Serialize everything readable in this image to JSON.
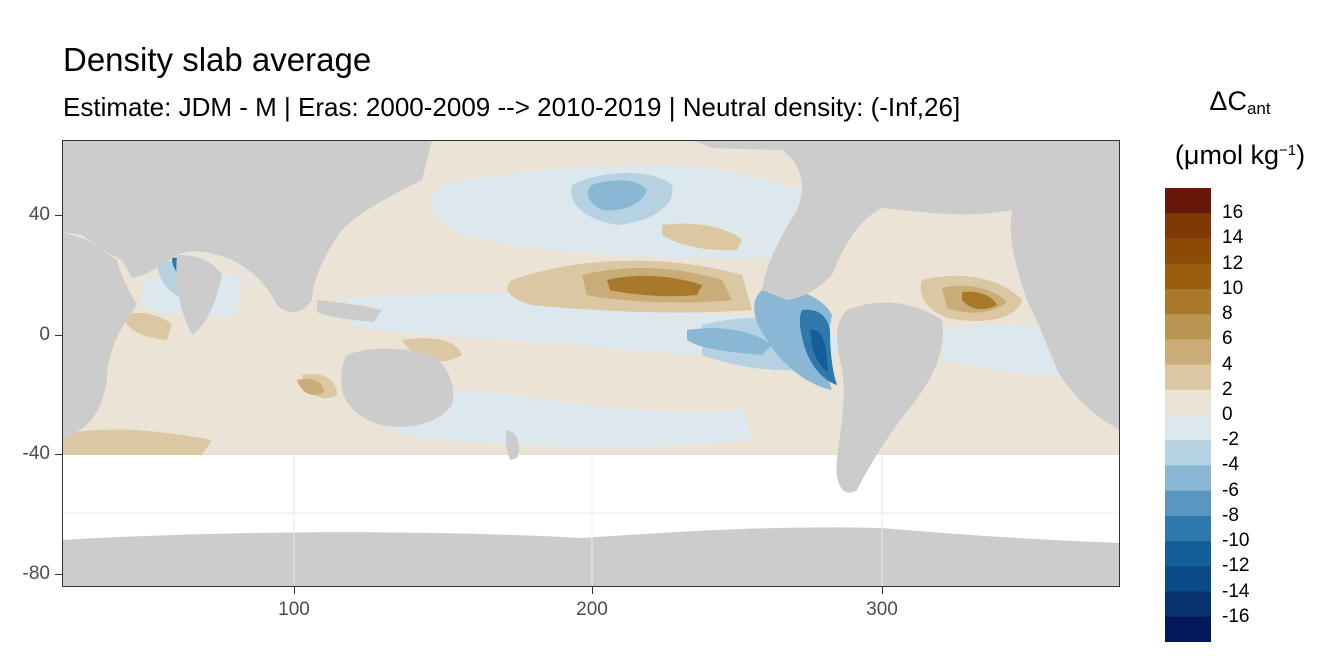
{
  "title": "Density slab average",
  "subtitle": "Estimate: JDM - M | Eras: 2000-2009 --> 2010-2019 | Neutral density: (-Inf,26]",
  "legend": {
    "title_symbol": "ΔC",
    "title_sub": "ant",
    "unit_prefix": "(μmol kg",
    "unit_sup": "−1",
    "unit_suffix": ")",
    "labels": [
      "16",
      "14",
      "12",
      "10",
      "8",
      "6",
      "4",
      "2",
      "0",
      "-2",
      "-4",
      "-6",
      "-8",
      "-10",
      "-12",
      "-14",
      "-16"
    ],
    "colors": [
      "#67180a",
      "#7e3906",
      "#8c4a06",
      "#9a5d0f",
      "#a9792a",
      "#b89550",
      "#c9ac78",
      "#dbc7a1",
      "#ebe4d6",
      "#dde8ee",
      "#b6d2e2",
      "#8ab7d3",
      "#5a97c0",
      "#2f78ac",
      "#135d99",
      "#0b4a86",
      "#06336f",
      "#02185a"
    ]
  },
  "axes": {
    "x_ticks": [
      "100",
      "200",
      "300"
    ],
    "y_ticks": [
      "40",
      "0",
      "-40",
      "-80"
    ]
  },
  "map": {
    "land_color": "#cccccc",
    "no_data_color": "#ffffff",
    "ocean_base_color": "#ebe4d6"
  }
}
